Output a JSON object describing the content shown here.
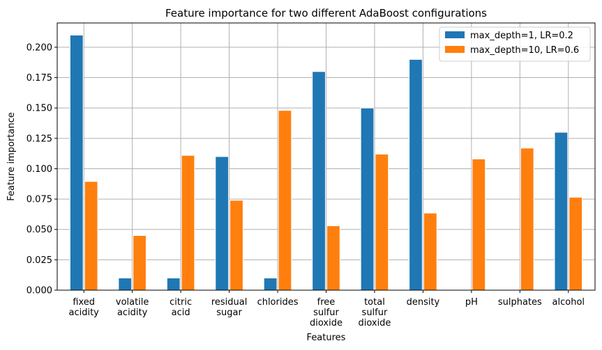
{
  "chart_data": {
    "type": "bar",
    "title": "Feature importance for two different AdaBoost configurations",
    "xlabel": "Features",
    "ylabel": "Feature importance",
    "ylim": [
      0,
      0.22
    ],
    "yticks": [
      "0.000",
      "0.025",
      "0.050",
      "0.075",
      "0.100",
      "0.125",
      "0.150",
      "0.175",
      "0.200"
    ],
    "grid": true,
    "legend_position": "top-right",
    "categories": [
      [
        "fixed",
        "acidity"
      ],
      [
        "volatile",
        "acidity"
      ],
      [
        "citric",
        "acid"
      ],
      [
        "residual",
        "sugar"
      ],
      [
        "chlorides"
      ],
      [
        "free",
        "sulfur",
        "dioxide"
      ],
      [
        "total",
        "sulfur",
        "dioxide"
      ],
      [
        "density"
      ],
      [
        "pH"
      ],
      [
        "sulphates"
      ],
      [
        "alcohol"
      ]
    ],
    "series": [
      {
        "name": "max_depth=1, LR=0.2",
        "color": "#1f77b4",
        "values": [
          0.21,
          0.01,
          0.01,
          0.11,
          0.01,
          0.18,
          0.15,
          0.19,
          0.0,
          0.0,
          0.13
        ]
      },
      {
        "name": "max_depth=10, LR=0.6",
        "color": "#ff7f0e",
        "values": [
          0.0895,
          0.045,
          0.111,
          0.074,
          0.148,
          0.053,
          0.112,
          0.0635,
          0.108,
          0.117,
          0.0765
        ]
      }
    ]
  }
}
